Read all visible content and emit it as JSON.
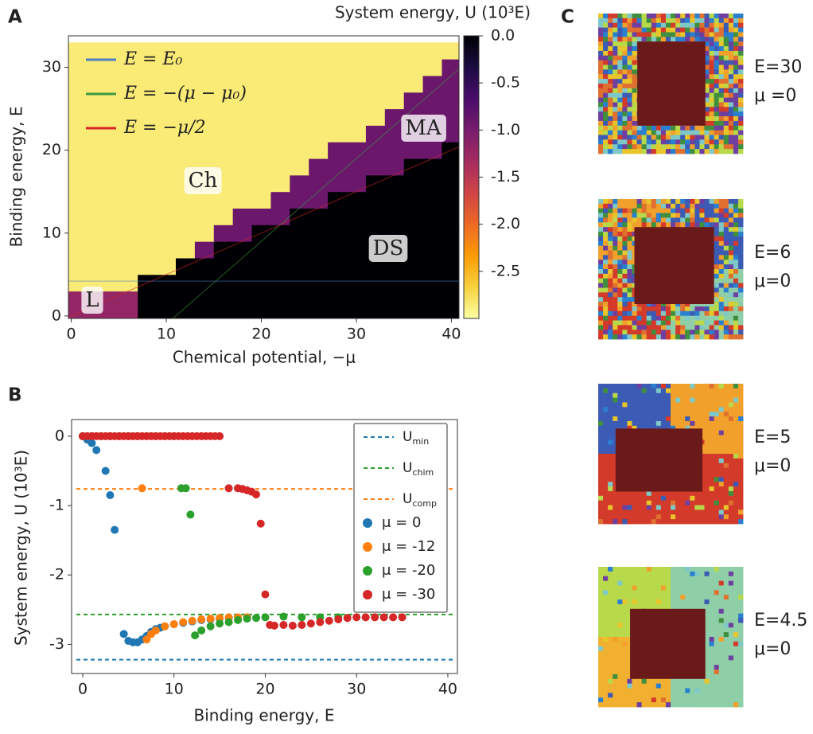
{
  "chart_data": [
    {
      "panel": "A",
      "type": "heatmap",
      "colorbar_label": "System energy, U (10³E)",
      "xlabel": "Chemical potential, −μ",
      "ylabel": "Binding energy, E",
      "x": [
        0,
        2,
        4,
        6,
        8,
        10,
        12,
        14,
        16,
        18,
        20,
        22,
        24,
        26,
        28,
        30,
        32,
        34,
        36,
        38,
        40
      ],
      "y": [
        0,
        2,
        4,
        6,
        8,
        10,
        12,
        14,
        16,
        18,
        20,
        22,
        24,
        26,
        28,
        30,
        32
      ],
      "z": [
        [
          -1.2,
          -1.2,
          -1.2,
          -1.2,
          0,
          0,
          0,
          0,
          0,
          0,
          0,
          0,
          0,
          0,
          0,
          0,
          0,
          0,
          0,
          0,
          0
        ],
        [
          -1.2,
          -1.2,
          -1.2,
          -1.2,
          0,
          0,
          0,
          0,
          0,
          0,
          0,
          0,
          0,
          0,
          0,
          0,
          0,
          0,
          0,
          0,
          0
        ],
        [
          -2.85,
          -2.85,
          -2.85,
          -2.85,
          0,
          0,
          0,
          0,
          0,
          0,
          0,
          0,
          0,
          0,
          0,
          0,
          0,
          0,
          0,
          0,
          0
        ],
        [
          -2.85,
          -2.85,
          -2.85,
          -2.85,
          -2.85,
          -2.85,
          0,
          0,
          0,
          0,
          0,
          0,
          0,
          0,
          0,
          0,
          0,
          0,
          0,
          0,
          0
        ],
        [
          -2.85,
          -2.85,
          -2.85,
          -2.85,
          -2.85,
          -2.85,
          -2.85,
          -0.9,
          0,
          0,
          0,
          0,
          0,
          0,
          0,
          0,
          0,
          0,
          0,
          0,
          0
        ],
        [
          -2.85,
          -2.85,
          -2.85,
          -2.85,
          -2.85,
          -2.85,
          -2.85,
          -2.85,
          -0.9,
          -0.9,
          0,
          0,
          0,
          0,
          0,
          0,
          0,
          0,
          0,
          0,
          0
        ],
        [
          -2.85,
          -2.85,
          -2.85,
          -2.85,
          -2.85,
          -2.85,
          -2.85,
          -2.85,
          -2.85,
          -0.9,
          -0.9,
          -0.9,
          0,
          0,
          0,
          0,
          0,
          0,
          0,
          0,
          0
        ],
        [
          -2.85,
          -2.85,
          -2.85,
          -2.85,
          -2.85,
          -2.85,
          -2.85,
          -2.85,
          -2.85,
          -2.85,
          -2.85,
          -0.9,
          -0.9,
          -0.9,
          0,
          0,
          0,
          0,
          0,
          0,
          0
        ],
        [
          -2.85,
          -2.85,
          -2.85,
          -2.85,
          -2.85,
          -2.85,
          -2.85,
          -2.85,
          -2.85,
          -2.85,
          -2.85,
          -2.85,
          -0.9,
          -0.9,
          -0.9,
          -0.9,
          0,
          0,
          0,
          0,
          0
        ],
        [
          -2.85,
          -2.85,
          -2.85,
          -2.85,
          -2.85,
          -2.85,
          -2.85,
          -2.85,
          -2.85,
          -2.85,
          -2.85,
          -2.85,
          -2.85,
          -0.9,
          -0.9,
          -0.9,
          -0.9,
          -0.9,
          0,
          0,
          0
        ],
        [
          -2.85,
          -2.85,
          -2.85,
          -2.85,
          -2.85,
          -2.85,
          -2.85,
          -2.85,
          -2.85,
          -2.85,
          -2.85,
          -2.85,
          -2.85,
          -2.85,
          -0.9,
          -0.9,
          -0.9,
          -0.9,
          -0.9,
          -0.9,
          0
        ],
        [
          -2.85,
          -2.85,
          -2.85,
          -2.85,
          -2.85,
          -2.85,
          -2.85,
          -2.85,
          -2.85,
          -2.85,
          -2.85,
          -2.85,
          -2.85,
          -2.85,
          -2.85,
          -2.85,
          -0.9,
          -0.9,
          -0.9,
          -0.9,
          -0.9
        ],
        [
          -2.85,
          -2.85,
          -2.85,
          -2.85,
          -2.85,
          -2.85,
          -2.85,
          -2.85,
          -2.85,
          -2.85,
          -2.85,
          -2.85,
          -2.85,
          -2.85,
          -2.85,
          -2.85,
          -2.85,
          -0.9,
          -0.9,
          -0.9,
          -0.9
        ],
        [
          -2.85,
          -2.85,
          -2.85,
          -2.85,
          -2.85,
          -2.85,
          -2.85,
          -2.85,
          -2.85,
          -2.85,
          -2.85,
          -2.85,
          -2.85,
          -2.85,
          -2.85,
          -2.85,
          -2.85,
          -2.85,
          -0.9,
          -0.9,
          -0.9
        ],
        [
          -2.85,
          -2.85,
          -2.85,
          -2.85,
          -2.85,
          -2.85,
          -2.85,
          -2.85,
          -2.85,
          -2.85,
          -2.85,
          -2.85,
          -2.85,
          -2.85,
          -2.85,
          -2.85,
          -2.85,
          -2.85,
          -2.85,
          -0.9,
          -0.9
        ],
        [
          -2.85,
          -2.85,
          -2.85,
          -2.85,
          -2.85,
          -2.85,
          -2.85,
          -2.85,
          -2.85,
          -2.85,
          -2.85,
          -2.85,
          -2.85,
          -2.85,
          -2.85,
          -2.85,
          -2.85,
          -2.85,
          -2.85,
          -2.85,
          -0.9
        ],
        [
          -2.85,
          -2.85,
          -2.85,
          -2.85,
          -2.85,
          -2.85,
          -2.85,
          -2.85,
          -2.85,
          -2.85,
          -2.85,
          -2.85,
          -2.85,
          -2.85,
          -2.85,
          -2.85,
          -2.85,
          -2.85,
          -2.85,
          -2.85,
          -2.85
        ]
      ],
      "xlim": [
        -0.3,
        40.8
      ],
      "ylim": [
        -0.3,
        33.8
      ],
      "xticks": [
        0,
        10,
        20,
        30,
        40
      ],
      "yticks": [
        0,
        10,
        20,
        30
      ],
      "clim": [
        -3.0,
        0
      ],
      "cticks": [
        {
          "value": 0,
          "label": "0.0"
        },
        -0.5,
        {
          "value": -1,
          "label": "-1.0"
        },
        -1.5,
        {
          "value": -2,
          "label": "-2.0"
        },
        -2.5
      ],
      "colormap": [
        "#fcffa4",
        "#f7d13d",
        "#fb9b06",
        "#ed6925",
        "#cf4446",
        "#a52c60",
        "#781c6d",
        "#4a0c6b",
        "#1b0c41",
        "#000004"
      ],
      "lines": [
        {
          "name": "E = E₀",
          "color": "#4a7fc1",
          "E0": 4.2
        },
        {
          "name": "E = −(μ − μ₀)",
          "color": "#3f9a3f",
          "mu0": -11
        },
        {
          "name": "E = −μ/2",
          "color": "#d62728",
          "slope": 0.5
        }
      ],
      "legend": "upper left",
      "annotations": [
        "Ch",
        "MA",
        "DS",
        "L"
      ]
    },
    {
      "panel": "B",
      "type": "scatter",
      "xlabel": "Binding energy, E",
      "ylabel": "System energy, U (10³E)",
      "xlim": [
        -1.22,
        41.05
      ],
      "ylim": [
        -3.42,
        0.24
      ],
      "xticks": [
        0,
        10,
        20,
        30,
        40
      ],
      "yticks": [
        0,
        -1,
        -2,
        -3
      ],
      "legend": "upper right",
      "hlines": [
        {
          "name": "U",
          "subscript": "min",
          "color": "#1f77b4",
          "value": -3.22
        },
        {
          "name": "U",
          "subscript": "chim",
          "color": "#2ca02c",
          "value": -2.57
        },
        {
          "name": "U",
          "subscript": "comp",
          "color": "#ff7f0e",
          "value": -0.76
        }
      ],
      "series": [
        {
          "name": "μ = 0",
          "color": "#1f77b4",
          "x": [
            0,
            0.5,
            1,
            1.5,
            2.5,
            3,
            3.5,
            4.5,
            5,
            5.5,
            6,
            6.5,
            7,
            7.5,
            8,
            8.5,
            9,
            10,
            11,
            12,
            13,
            14,
            15,
            16
          ],
          "values": [
            0,
            -0.05,
            -0.1,
            -0.2,
            -0.5,
            -0.85,
            -1.35,
            -2.85,
            -2.95,
            -2.97,
            -2.97,
            -2.93,
            -2.88,
            -2.82,
            -2.78,
            -2.76,
            -2.74,
            -2.71,
            -2.69,
            -2.67,
            -2.65,
            -2.64,
            -2.63,
            -2.62
          ]
        },
        {
          "name": "μ = -12",
          "color": "#ff7f0e",
          "x": [
            0,
            1,
            2,
            3,
            4,
            5,
            6,
            6.5,
            7,
            7.5,
            8,
            9,
            10,
            11,
            12,
            13,
            14,
            15,
            16,
            17,
            18
          ],
          "values": [
            0,
            0,
            0,
            0,
            0,
            0,
            0,
            -0.75,
            -2.93,
            -2.85,
            -2.8,
            -2.74,
            -2.71,
            -2.68,
            -2.66,
            -2.64,
            -2.63,
            -2.62,
            -2.61,
            -2.61,
            -2.61
          ]
        },
        {
          "name": "μ = -20",
          "color": "#2ca02c",
          "x": [
            0,
            1,
            2,
            3,
            4,
            5,
            6,
            7,
            8,
            9,
            10,
            10.8,
            11.3,
            11.8,
            12.3,
            13,
            14,
            15,
            16,
            17,
            18,
            19,
            20,
            22,
            24,
            26,
            28
          ],
          "values": [
            0,
            0,
            0,
            0,
            0,
            0,
            0,
            0,
            0,
            0,
            0,
            -0.75,
            -0.75,
            -1.13,
            -2.87,
            -2.8,
            -2.74,
            -2.7,
            -2.68,
            -2.65,
            -2.63,
            -2.62,
            -2.61,
            -2.6,
            -2.61,
            -2.61,
            -2.61
          ]
        },
        {
          "name": "μ = -30",
          "color": "#d62728",
          "x": [
            0,
            0.5,
            1,
            1.5,
            2,
            2.5,
            3,
            3.5,
            4,
            4.5,
            5,
            5.5,
            6,
            6.5,
            7,
            7.5,
            8,
            8.5,
            9,
            9.5,
            10,
            10.5,
            11,
            11.5,
            12,
            12.5,
            13,
            13.5,
            14,
            14.5,
            15,
            16,
            17,
            17.5,
            18,
            18.5,
            19,
            19.5,
            20,
            20.5,
            21,
            22,
            23,
            24,
            25,
            26,
            27,
            28,
            29,
            30,
            31,
            32,
            33,
            34,
            35
          ],
          "values": [
            0,
            0,
            0,
            0,
            0,
            0,
            0,
            0,
            0,
            0,
            0,
            0,
            0,
            0,
            0,
            0,
            0,
            0,
            0,
            0,
            0,
            0,
            0,
            0,
            0,
            0,
            0,
            0,
            0,
            0,
            0,
            -0.75,
            -0.75,
            -0.76,
            -0.78,
            -0.8,
            -0.84,
            -1.26,
            -2.28,
            -2.72,
            -2.73,
            -2.72,
            -2.73,
            -2.72,
            -2.7,
            -2.68,
            -2.66,
            -2.64,
            -2.62,
            -2.61,
            -2.61,
            -2.61,
            -2.61,
            -2.61,
            -2.61
          ]
        }
      ]
    }
  ],
  "images": {
    "panel": "C",
    "items": [
      {
        "E": "E=30",
        "mu": "μ =0"
      },
      {
        "E": "E=6",
        "mu": "μ=0"
      },
      {
        "E": "E=5",
        "mu": "μ=0"
      },
      {
        "E": "E=4.5",
        "mu": "μ=0"
      }
    ]
  }
}
